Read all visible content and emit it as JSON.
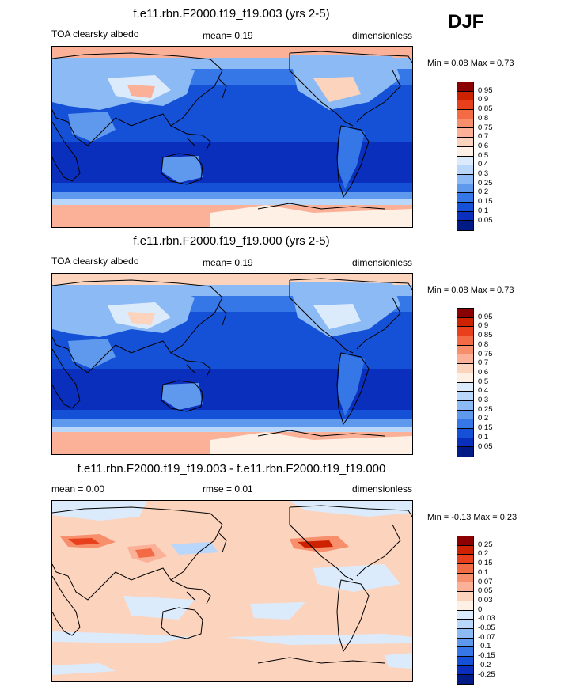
{
  "season_label": "DJF",
  "panels": [
    {
      "title": "f.e11.rbn.F2000.f19_f19.003 (yrs 2-5)",
      "left_label": "TOA clearsky albedo",
      "center_label": "mean=  0.19",
      "right_label": "dimensionless",
      "minmax": "Min =  0.08 Max =  0.73",
      "colorbar": {
        "labels": [
          "0.95",
          "0.9",
          "0.85",
          "0.8",
          "0.75",
          "0.7",
          "0.6",
          "0.5",
          "0.4",
          "0.3",
          "0.25",
          "0.2",
          "0.15",
          "0.1",
          "0.05"
        ],
        "colors": [
          "#8b0000",
          "#cc2200",
          "#e8401c",
          "#f26b45",
          "#f78e6c",
          "#fab197",
          "#fcd3bd",
          "#fff0e6",
          "#dcebfc",
          "#b9d7fa",
          "#8cbaf5",
          "#5f99ee",
          "#3577e6",
          "#1551d6",
          "#0a2fbd",
          "#021a84"
        ]
      }
    },
    {
      "title": "f.e11.rbn.F2000.f19_f19.000 (yrs 2-5)",
      "left_label": "TOA clearsky albedo",
      "center_label": "mean=  0.19",
      "right_label": "dimensionless",
      "minmax": "Min =  0.08 Max =  0.73",
      "colorbar": {
        "labels": [
          "0.95",
          "0.9",
          "0.85",
          "0.8",
          "0.75",
          "0.7",
          "0.6",
          "0.5",
          "0.4",
          "0.3",
          "0.25",
          "0.2",
          "0.15",
          "0.1",
          "0.05"
        ],
        "colors": [
          "#8b0000",
          "#cc2200",
          "#e8401c",
          "#f26b45",
          "#f78e6c",
          "#fab197",
          "#fcd3bd",
          "#fff0e6",
          "#dcebfc",
          "#b9d7fa",
          "#8cbaf5",
          "#5f99ee",
          "#3577e6",
          "#1551d6",
          "#0a2fbd",
          "#021a84"
        ]
      }
    },
    {
      "title": "f.e11.rbn.F2000.f19_f19.003 - f.e11.rbn.F2000.f19_f19.000",
      "left_label": "mean =   0.00",
      "center_label": "rmse =   0.01",
      "right_label": "dimensionless",
      "minmax": "Min =  -0.13 Max =  0.23",
      "colorbar": {
        "labels": [
          "0.25",
          "0.2",
          "0.15",
          "0.1",
          "0.07",
          "0.05",
          "0.03",
          "0",
          "-0.03",
          "-0.05",
          "-0.07",
          "-0.1",
          "-0.15",
          "-0.2",
          "-0.25"
        ],
        "colors": [
          "#8b0000",
          "#cc2200",
          "#e8401c",
          "#f26b45",
          "#f78e6c",
          "#fab197",
          "#fcd3bd",
          "#fff0e6",
          "#dcebfc",
          "#b9d7fa",
          "#8cbaf5",
          "#5f99ee",
          "#3577e6",
          "#1551d6",
          "#0a2fbd",
          "#021a84"
        ]
      }
    }
  ]
}
